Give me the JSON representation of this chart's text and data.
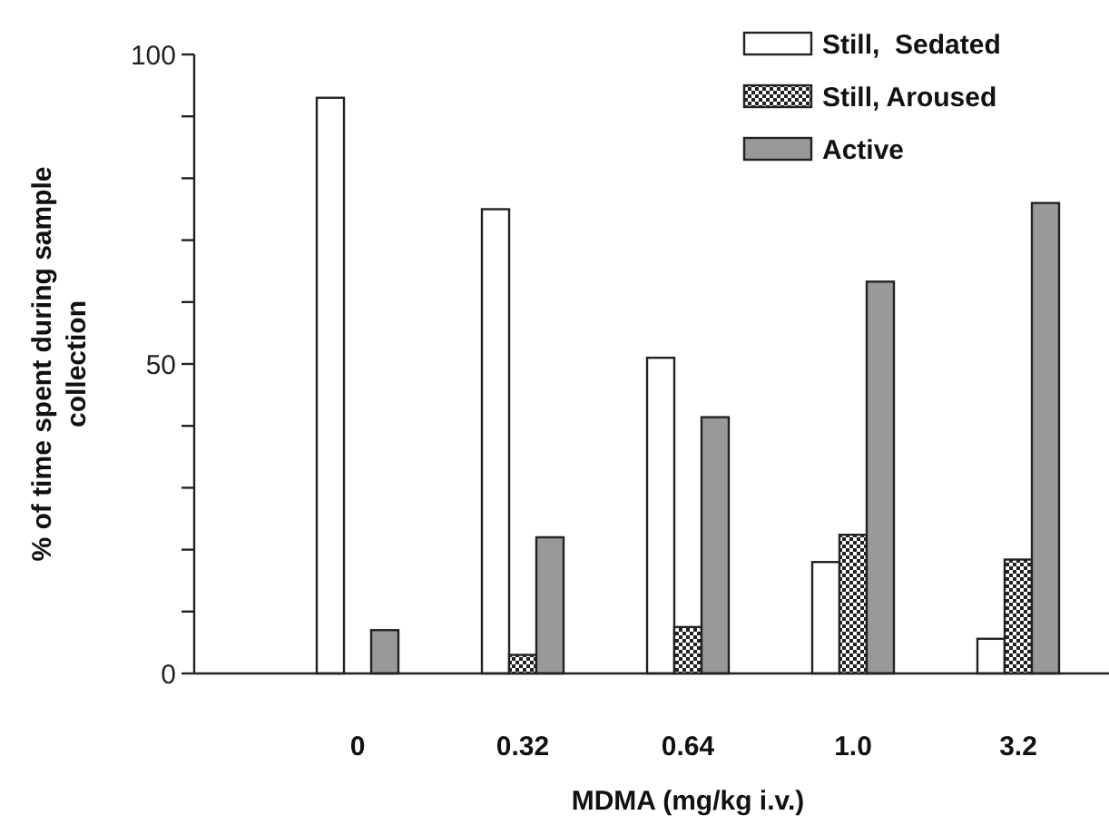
{
  "chart_data": {
    "type": "bar",
    "xlabel": "MDMA (mg/kg i.v.)",
    "ylabel": "% of time spent during sample collection",
    "categories": [
      "0",
      "0.32",
      "0.64",
      "1.0",
      "3.2"
    ],
    "series": [
      {
        "name": "Still,  Sedated",
        "color": "#ffffff",
        "values": [
          93,
          75,
          51,
          18,
          5.6
        ]
      },
      {
        "name": "Still, Aroused",
        "color": "#222222",
        "values": [
          0,
          3,
          7.5,
          22.4,
          18.4
        ]
      },
      {
        "name": "Active",
        "color": "#999999",
        "values": [
          7,
          22,
          41.4,
          63.3,
          76
        ]
      }
    ],
    "ylim": [
      0,
      100
    ],
    "yticks": [
      0,
      {
        "value": 10,
        "label": null
      },
      {
        "value": 20,
        "label": null
      },
      {
        "value": 30,
        "label": null
      },
      {
        "value": 40,
        "label": null
      },
      50,
      {
        "value": 60,
        "label": null
      },
      {
        "value": 70,
        "label": null
      },
      {
        "value": 80,
        "label": null
      },
      {
        "value": 90,
        "label": null
      },
      100
    ],
    "legend": "top right"
  }
}
